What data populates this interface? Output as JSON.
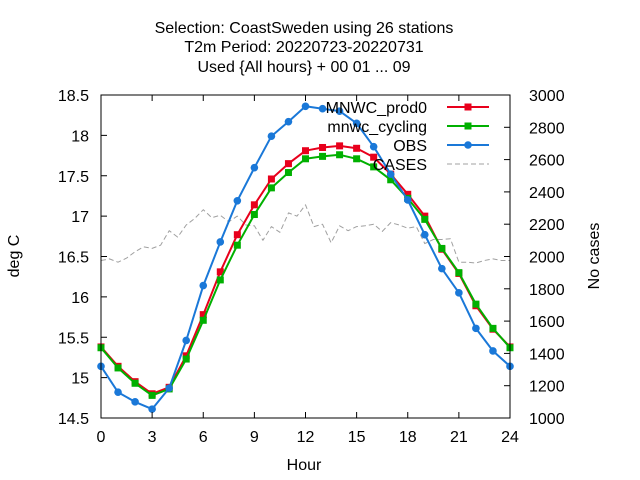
{
  "chart_data": {
    "type": "line",
    "title_lines": [
      "Selection: CoastSweden using    26 stations",
      "T2m   Period: 20220723-20220731",
      "Used {All hours} + 00 01 ... 09"
    ],
    "xlabel": "Hour",
    "ylabel": "deg C",
    "y2label": "No cases",
    "xlim": [
      0,
      24
    ],
    "ylim": [
      14.5,
      18.5
    ],
    "y2lim": [
      1000,
      3000
    ],
    "x_ticks": [
      0,
      3,
      6,
      9,
      12,
      15,
      18,
      21,
      24
    ],
    "y_ticks": [
      14.5,
      15,
      15.5,
      16,
      16.5,
      17,
      17.5,
      18,
      18.5
    ],
    "y2_ticks": [
      1000,
      1200,
      1400,
      1600,
      1800,
      2000,
      2200,
      2400,
      2600,
      2800,
      3000
    ],
    "grid": false,
    "legend_position": "top-right",
    "x": [
      0,
      1,
      2,
      3,
      4,
      5,
      6,
      7,
      8,
      9,
      10,
      11,
      12,
      13,
      14,
      15,
      16,
      17,
      18,
      19,
      20,
      21,
      22,
      23,
      24
    ],
    "series": [
      {
        "name": "MNWC_prod0",
        "color": "#e8001c",
        "marker": "square",
        "axis": "left",
        "values": [
          15.38,
          15.14,
          14.95,
          14.8,
          14.88,
          15.27,
          15.78,
          16.31,
          16.77,
          17.14,
          17.46,
          17.65,
          17.81,
          17.85,
          17.87,
          17.84,
          17.73,
          17.52,
          17.27,
          17.0,
          16.59,
          16.29,
          15.89,
          15.6,
          15.38
        ]
      },
      {
        "name": "mnwc_cycling",
        "color": "#00b000",
        "marker": "square",
        "axis": "left",
        "values": [
          15.37,
          15.12,
          14.93,
          14.78,
          14.86,
          15.23,
          15.71,
          16.21,
          16.64,
          17.02,
          17.35,
          17.54,
          17.71,
          17.74,
          17.76,
          17.71,
          17.61,
          17.45,
          17.22,
          16.96,
          16.6,
          16.3,
          15.91,
          15.61,
          15.37
        ]
      },
      {
        "name": "OBS",
        "color": "#1a78d8",
        "marker": "circle",
        "axis": "left",
        "values": [
          15.14,
          14.82,
          14.7,
          14.61,
          14.87,
          15.46,
          16.14,
          16.68,
          17.19,
          17.6,
          17.99,
          18.17,
          18.36,
          18.33,
          18.3,
          18.15,
          17.86,
          17.52,
          17.2,
          16.77,
          16.35,
          16.05,
          15.61,
          15.33,
          15.14
        ]
      },
      {
        "name": "CASES",
        "color": "#a0a0a0",
        "marker": "none",
        "dashed": true,
        "axis": "right",
        "values": [
          1975,
          1985,
          1965,
          1990,
          2030,
          2060,
          2050,
          2070,
          2160,
          2120,
          2195,
          2235,
          2290,
          2240,
          2255,
          2215,
          2250,
          2195,
          2190,
          2100,
          2185,
          2150,
          2270,
          2250,
          2320,
          2185,
          2200,
          2085,
          2190,
          2160,
          2185,
          2190,
          2200,
          2155,
          2210,
          2195,
          2175,
          2185,
          2080,
          2105,
          2105,
          2110,
          1965,
          1965,
          1960,
          1975,
          1985,
          1975,
          1975
        ],
        "x": [
          0,
          0.5,
          1,
          1.5,
          2,
          2.5,
          3,
          3.5,
          4,
          4.5,
          5,
          5.5,
          6,
          6.5,
          7,
          7.5,
          8,
          8.5,
          9,
          9.5,
          10,
          10.5,
          11,
          11.5,
          12,
          12.5,
          13,
          13.5,
          14,
          14.5,
          15,
          15.5,
          16,
          16.5,
          17,
          17.5,
          18,
          18.5,
          19,
          19.5,
          20,
          20.5,
          21,
          21.5,
          22,
          22.5,
          23,
          23.5,
          24
        ]
      }
    ]
  }
}
